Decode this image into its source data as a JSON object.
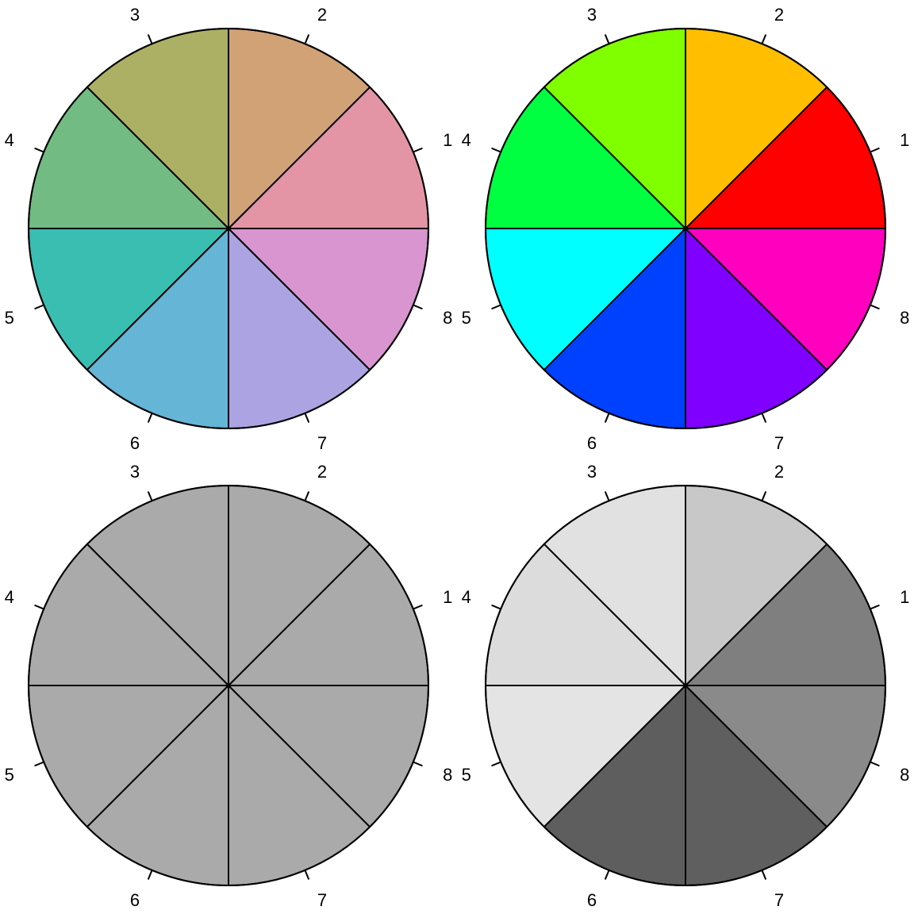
{
  "chart_data": [
    {
      "type": "pie",
      "labels": [
        "1",
        "2",
        "3",
        "4",
        "5",
        "6",
        "7",
        "8"
      ],
      "values": [
        1,
        1,
        1,
        1,
        1,
        1,
        1,
        1
      ],
      "colors": [
        "#E495A5",
        "#D2A277",
        "#ABB065",
        "#72BB83",
        "#39BEB1",
        "#64B5D6",
        "#ACA4E2",
        "#D995CF"
      ]
    },
    {
      "type": "pie",
      "labels": [
        "1",
        "2",
        "3",
        "4",
        "5",
        "6",
        "7",
        "8"
      ],
      "values": [
        1,
        1,
        1,
        1,
        1,
        1,
        1,
        1
      ],
      "colors": [
        "#FF0000",
        "#FFBF00",
        "#80FF00",
        "#00FF40",
        "#00FFFF",
        "#0040FF",
        "#8000FF",
        "#FF00BF"
      ]
    },
    {
      "type": "pie",
      "labels": [
        "1",
        "2",
        "3",
        "4",
        "5",
        "6",
        "7",
        "8"
      ],
      "values": [
        1,
        1,
        1,
        1,
        1,
        1,
        1,
        1
      ],
      "colors": [
        "#AAAAAA",
        "#AAAAAA",
        "#AAAAAA",
        "#AAAAAA",
        "#AAAAAA",
        "#AAAAAA",
        "#AAAAAA",
        "#AAAAAA"
      ]
    },
    {
      "type": "pie",
      "labels": [
        "1",
        "2",
        "3",
        "4",
        "5",
        "6",
        "7",
        "8"
      ],
      "values": [
        1,
        1,
        1,
        1,
        1,
        1,
        1,
        1
      ],
      "colors": [
        "#7F7F7F",
        "#C8C8C8",
        "#E1E1E1",
        "#DCDCDC",
        "#E4E4E4",
        "#5E5E5E",
        "#5F5F5F",
        "#8A8A8A"
      ]
    }
  ]
}
